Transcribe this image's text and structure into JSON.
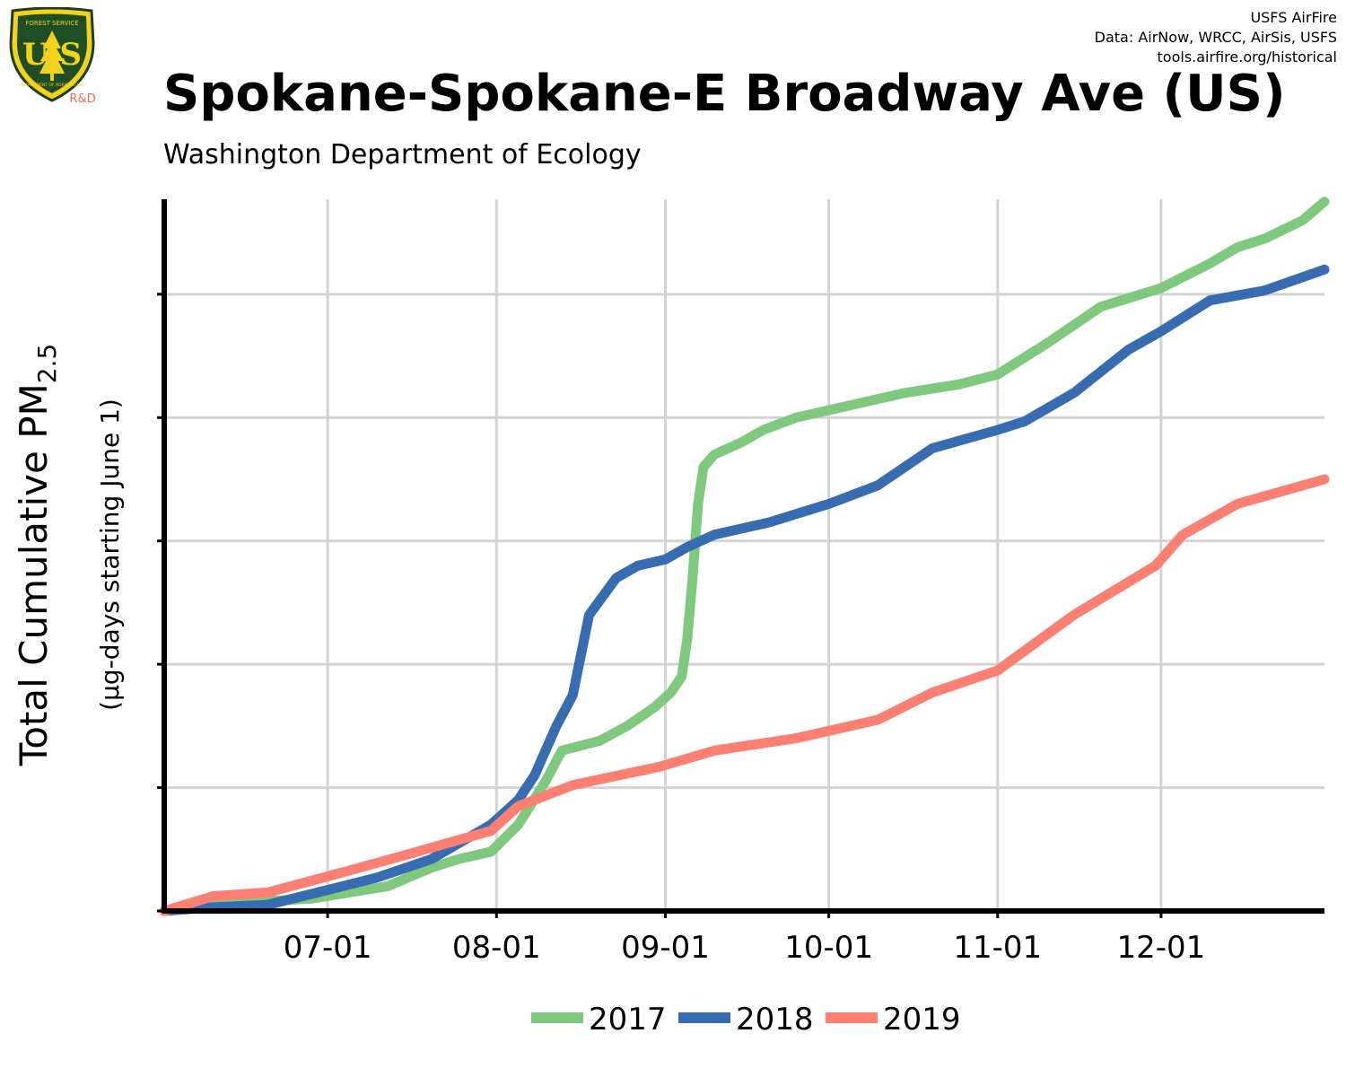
{
  "header": {
    "title": "Spokane-Spokane-E Broadway Ave (US)",
    "subtitle": "Washington Department of Ecology",
    "credits": [
      "USFS AirFire",
      "Data: AirNow, WRCC, AirSis, USFS",
      "tools.airfire.org/historical"
    ]
  },
  "logo": {
    "top_text": "FOREST SERVICE",
    "letters": "U S",
    "bottom_text": "DEPARTMENT OF AGRICULTURE",
    "badge": "R&D"
  },
  "colors": {
    "2017": "#7fc97f",
    "2018": "#386cb0",
    "2019": "#fb8072"
  },
  "chart_data": {
    "type": "line",
    "title": "Spokane-Spokane-E Broadway Ave (US)",
    "ylabel_main": "Total Cumulative PM",
    "ylabel_sub": "2.5",
    "ylabel_units": "(µg-days starting June 1)",
    "x_ticks": [
      {
        "date": "2019-07-01",
        "label": "07-01"
      },
      {
        "date": "2019-08-01",
        "label": "08-01"
      },
      {
        "date": "2019-09-01",
        "label": "09-01"
      },
      {
        "date": "2019-10-01",
        "label": "10-01"
      },
      {
        "date": "2019-11-01",
        "label": "11-01"
      },
      {
        "date": "2019-12-01",
        "label": "12-01"
      }
    ],
    "xlim": [
      "2019-06-01",
      "2019-12-31"
    ],
    "ylim": [
      0,
      5.77
    ],
    "y_ticks": [
      0,
      1,
      2,
      3,
      4,
      5
    ],
    "y_tick_labels_shown": false,
    "grid": true,
    "legend": "bottom",
    "series": [
      {
        "name": "2017",
        "points": [
          [
            "06-01",
            0
          ],
          [
            "06-10",
            0.05
          ],
          [
            "06-20",
            0.08
          ],
          [
            "06-28",
            0.1
          ],
          [
            "07-05",
            0.15
          ],
          [
            "07-12",
            0.2
          ],
          [
            "07-20",
            0.35
          ],
          [
            "07-25",
            0.42
          ],
          [
            "07-31",
            0.48
          ],
          [
            "08-05",
            0.7
          ],
          [
            "08-10",
            1.05
          ],
          [
            "08-13",
            1.3
          ],
          [
            "08-20",
            1.38
          ],
          [
            "08-25",
            1.5
          ],
          [
            "08-30",
            1.65
          ],
          [
            "09-02",
            1.77
          ],
          [
            "09-04",
            1.9
          ],
          [
            "09-05",
            2.2
          ],
          [
            "09-06",
            2.7
          ],
          [
            "09-07",
            3.3
          ],
          [
            "09-08",
            3.6
          ],
          [
            "09-10",
            3.7
          ],
          [
            "09-15",
            3.8
          ],
          [
            "09-19",
            3.9
          ],
          [
            "09-25",
            4.0
          ],
          [
            "10-05",
            4.1
          ],
          [
            "10-15",
            4.2
          ],
          [
            "10-25",
            4.27
          ],
          [
            "11-01",
            4.35
          ],
          [
            "11-10",
            4.6
          ],
          [
            "11-20",
            4.9
          ],
          [
            "12-01",
            5.05
          ],
          [
            "12-10",
            5.25
          ],
          [
            "12-15",
            5.38
          ],
          [
            "12-20",
            5.45
          ],
          [
            "12-27",
            5.6
          ],
          [
            "12-31",
            5.75
          ]
        ]
      },
      {
        "name": "2018",
        "points": [
          [
            "06-01",
            0
          ],
          [
            "06-10",
            0.03
          ],
          [
            "06-20",
            0.05
          ],
          [
            "07-01",
            0.17
          ],
          [
            "07-10",
            0.27
          ],
          [
            "07-20",
            0.42
          ],
          [
            "07-31",
            0.7
          ],
          [
            "08-05",
            0.9
          ],
          [
            "08-08",
            1.1
          ],
          [
            "08-12",
            1.5
          ],
          [
            "08-15",
            1.75
          ],
          [
            "08-18",
            2.4
          ],
          [
            "08-23",
            2.7
          ],
          [
            "08-27",
            2.8
          ],
          [
            "09-01",
            2.85
          ],
          [
            "09-05",
            2.95
          ],
          [
            "09-10",
            3.05
          ],
          [
            "09-20",
            3.15
          ],
          [
            "10-01",
            3.3
          ],
          [
            "10-10",
            3.45
          ],
          [
            "10-20",
            3.75
          ],
          [
            "11-01",
            3.9
          ],
          [
            "11-06",
            3.97
          ],
          [
            "11-15",
            4.2
          ],
          [
            "11-25",
            4.55
          ],
          [
            "12-01",
            4.7
          ],
          [
            "12-10",
            4.95
          ],
          [
            "12-20",
            5.03
          ],
          [
            "12-31",
            5.2
          ]
        ]
      },
      {
        "name": "2019",
        "points": [
          [
            "06-01",
            0
          ],
          [
            "06-10",
            0.12
          ],
          [
            "06-20",
            0.15
          ],
          [
            "07-01",
            0.28
          ],
          [
            "07-15",
            0.45
          ],
          [
            "07-31",
            0.65
          ],
          [
            "08-05",
            0.85
          ],
          [
            "08-15",
            1.02
          ],
          [
            "08-31",
            1.17
          ],
          [
            "09-10",
            1.3
          ],
          [
            "09-25",
            1.4
          ],
          [
            "10-10",
            1.55
          ],
          [
            "10-20",
            1.77
          ],
          [
            "11-01",
            1.95
          ],
          [
            "11-15",
            2.4
          ],
          [
            "11-30",
            2.8
          ],
          [
            "12-05",
            3.05
          ],
          [
            "12-15",
            3.3
          ],
          [
            "12-31",
            3.5
          ]
        ]
      }
    ]
  }
}
